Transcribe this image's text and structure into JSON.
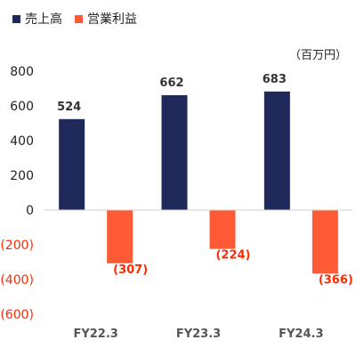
{
  "chart_data": {
    "type": "bar",
    "categories": [
      "FY22.3",
      "FY23.3",
      "FY24.3"
    ],
    "series": [
      {
        "name": "売上高",
        "values": [
          524,
          662,
          683
        ],
        "color": "#1f2a5a"
      },
      {
        "name": "営業利益",
        "values": [
          -307,
          -224,
          -366
        ],
        "color": "#ff5a36"
      }
    ],
    "unit_label": "（百万円）",
    "ylim": [
      -600,
      800
    ],
    "yticks": [
      800,
      600,
      400,
      200,
      0,
      -200,
      -400,
      -600
    ],
    "ytick_labels": [
      "800",
      "600",
      "400",
      "200",
      "0",
      "(200)",
      "(400)",
      "(600)"
    ],
    "data_labels": [
      [
        "524",
        "662",
        "683"
      ],
      [
        "(307)",
        "(224)",
        "(366)"
      ]
    ],
    "negative_label_color": "#ff2a00",
    "grid": false,
    "legend_position": "top-left"
  }
}
